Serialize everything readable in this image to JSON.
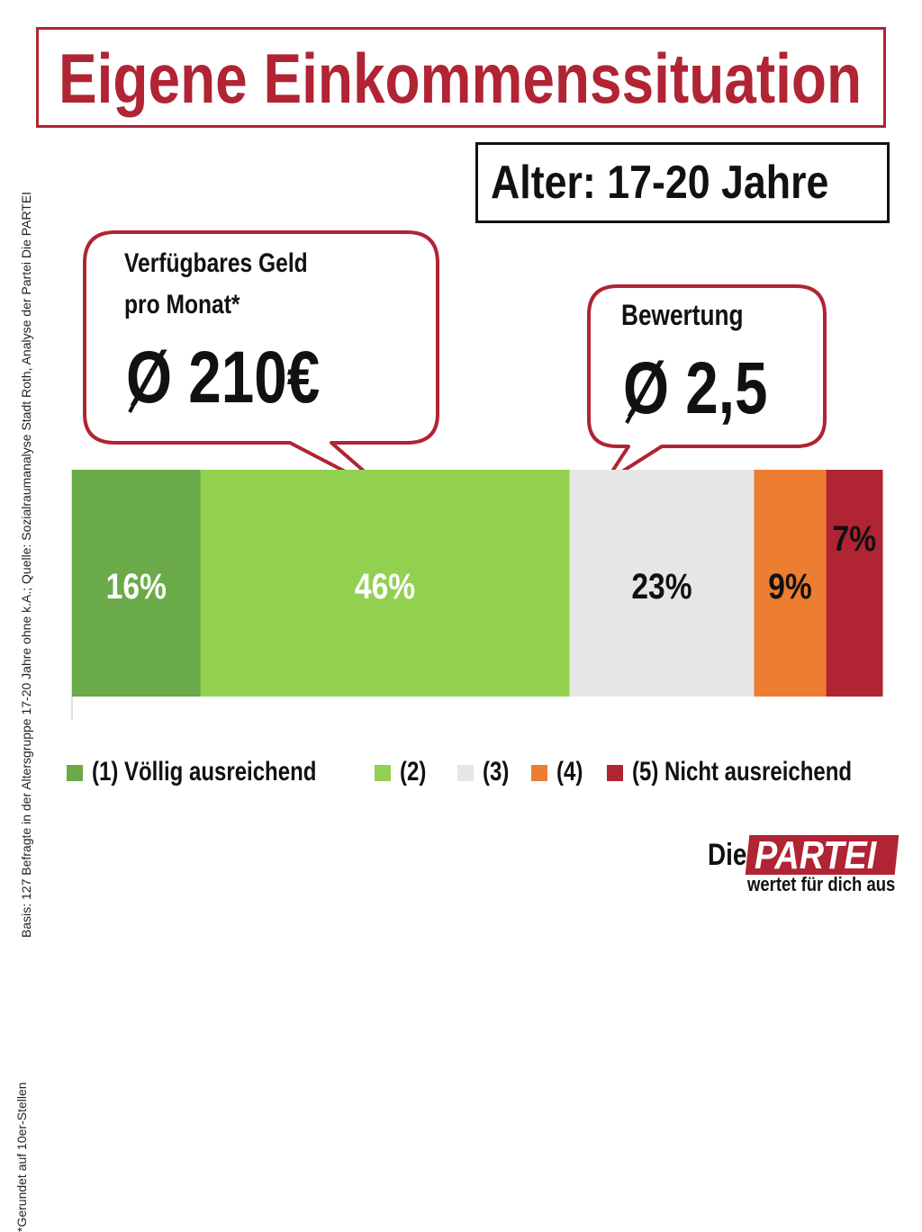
{
  "title": "Eigene Einkommenssituation",
  "age_group": "Alter: 17-20 Jahre",
  "money_bubble": {
    "label_line1": "Verfügbares Geld",
    "label_line2": "pro Monat*",
    "value": "Ø 210€"
  },
  "rating_bubble": {
    "label": "Bewertung",
    "value": "Ø 2,5"
  },
  "chart_data": {
    "type": "bar",
    "orientation": "horizontal-stacked",
    "categories": [
      "(1) Völlig ausreichend",
      "(2)",
      "(3)",
      "(4)",
      "(5) Nicht ausreichend"
    ],
    "values": [
      16,
      46,
      23,
      9,
      7
    ],
    "labels": [
      "16%",
      "46%",
      "23%",
      "9%",
      "7%"
    ],
    "colors": [
      "#6aaa48",
      "#92d050",
      "#e7e6e6",
      "#ed7d31",
      "#b02433"
    ],
    "label_colors": [
      "#ffffff",
      "#ffffff",
      "#111111",
      "#111111",
      "#111111"
    ],
    "legend_position": "bottom"
  },
  "source": "Basis: 127 Befragte in der Altersgruppe  17-20 Jahre ohne k.A.; Quelle: Sozialraumanalyse  Stadt Roth, Analyse der Partei Die PARTEI",
  "footnote": "*Gerundet auf 10er-Stellen",
  "logo": {
    "die": "Die",
    "partei": "PARTEI",
    "tagline": "wertet für dich aus"
  },
  "colors": {
    "brand_red": "#b02433",
    "text": "#111111"
  }
}
